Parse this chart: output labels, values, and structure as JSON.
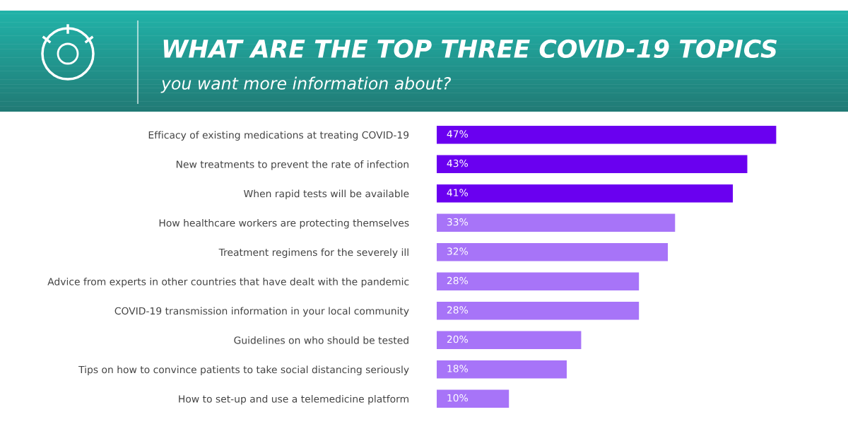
{
  "chart_data": {
    "type": "bar",
    "orientation": "horizontal",
    "title": "WHAT ARE THE TOP THREE COVID-19 TOPICS",
    "subtitle": "you want more information about?",
    "categories": [
      "Efficacy of existing medications at treating COVID-19",
      "New treatments to prevent the rate of infection",
      "When rapid tests will be available",
      "How healthcare workers are protecting themselves",
      "Treatment regimens for the severely ill",
      "Advice from experts in other countries that have dealt with the pandemic",
      "COVID-19 transmission information in your local community",
      "Guidelines on who should be tested",
      "Tips on how to convince patients to take social distancing seriously",
      "How to set-up and use a telemedicine platform"
    ],
    "values": [
      47,
      43,
      41,
      33,
      32,
      28,
      28,
      20,
      18,
      10
    ],
    "value_labels": [
      "47%",
      "43%",
      "41%",
      "33%",
      "32%",
      "28%",
      "28%",
      "20%",
      "18%",
      "10%"
    ],
    "colors": [
      "#6a00f0",
      "#6a00f0",
      "#6a00f0",
      "#a774f8",
      "#a774f8",
      "#a774f8",
      "#a774f8",
      "#a774f8",
      "#a774f8",
      "#a774f8"
    ],
    "grid": false,
    "legend": false
  }
}
